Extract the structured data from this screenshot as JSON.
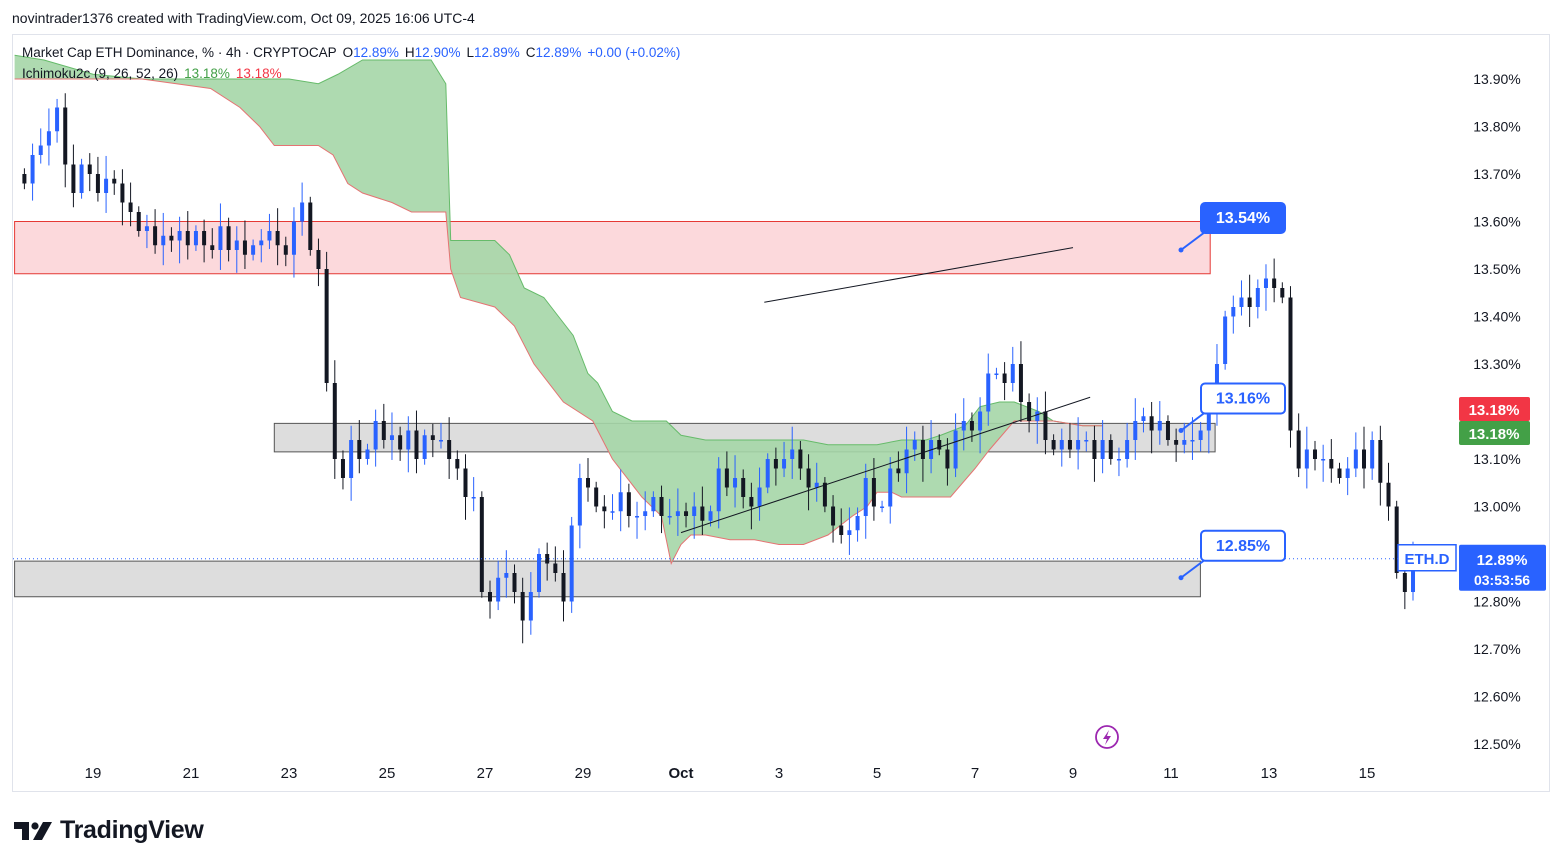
{
  "header": {
    "caption": "novintrader1376 created with TradingView.com, Oct 09, 2025 16:06 UTC-4"
  },
  "legend": {
    "symbol": "Market Cap ETH Dominance, % · 4h · CRYPTOCAP",
    "open_label": "O",
    "open": "12.89%",
    "high_label": "H",
    "high": "12.90%",
    "low_label": "L",
    "low": "12.89%",
    "close_label": "C",
    "close": "12.89%",
    "change": "+0.00 (+0.02%)",
    "indicator": "Ichimoku2c (9, 26, 52, 26)",
    "indicator_val1": "13.18%",
    "indicator_val2": "13.18%"
  },
  "footer": {
    "brand": "TradingView"
  },
  "colors": {
    "up": "#2962ff",
    "down": "#131722",
    "cloud_fill": "#a5d6a7",
    "cloud_edge": "#e57373",
    "resistance_zone": "#fcd9dc",
    "support_zone": "#d9d9d9",
    "accent": "#2962ff"
  },
  "chart_data": {
    "type": "candlestick",
    "title": "Market Cap ETH Dominance, % · 4h · CRYPTOCAP",
    "ylim": [
      12.46,
      13.98
    ],
    "yticks": [
      "13.90%",
      "13.80%",
      "13.70%",
      "13.60%",
      "13.50%",
      "13.40%",
      "13.30%",
      "13.10%",
      "13.00%",
      "12.80%",
      "12.70%",
      "12.60%",
      "12.50%"
    ],
    "ytick_values": [
      13.9,
      13.8,
      13.7,
      13.6,
      13.5,
      13.4,
      13.3,
      13.1,
      13.0,
      12.8,
      12.7,
      12.6,
      12.5
    ],
    "x_range_days": [
      17.4,
      16.3
    ],
    "xticks": [
      {
        "label": "19",
        "day": 19
      },
      {
        "label": "21",
        "day": 21
      },
      {
        "label": "23",
        "day": 23
      },
      {
        "label": "25",
        "day": 25
      },
      {
        "label": "27",
        "day": 27
      },
      {
        "label": "29",
        "day": 29
      },
      {
        "label": "Oct",
        "day": 31
      },
      {
        "label": "3",
        "day": 33
      },
      {
        "label": "5",
        "day": 35
      },
      {
        "label": "7",
        "day": 37
      },
      {
        "label": "9",
        "day": 39
      },
      {
        "label": "11",
        "day": 41
      },
      {
        "label": "13",
        "day": 43
      },
      {
        "label": "15",
        "day": 45
      }
    ],
    "candle_day_start": 17.6,
    "candle_step_days": 0.1667,
    "closes": [
      13.68,
      13.74,
      13.76,
      13.79,
      13.84,
      13.72,
      13.66,
      13.72,
      13.7,
      13.66,
      13.69,
      13.68,
      13.64,
      13.62,
      13.58,
      13.59,
      13.55,
      13.57,
      13.56,
      13.58,
      13.55,
      13.58,
      13.55,
      13.54,
      13.59,
      13.54,
      13.56,
      13.53,
      13.55,
      13.56,
      13.58,
      13.55,
      13.53,
      13.6,
      13.64,
      13.54,
      13.5,
      13.26,
      13.1,
      13.06,
      13.14,
      13.1,
      13.12,
      13.18,
      13.14,
      13.15,
      13.12,
      13.16,
      13.1,
      13.15,
      13.14,
      13.14,
      13.1,
      13.08,
      13.02,
      13.02,
      12.82,
      12.8,
      12.85,
      12.86,
      12.82,
      12.76,
      12.82,
      12.9,
      12.88,
      12.86,
      12.8,
      12.96,
      13.06,
      13.04,
      13.0,
      12.99,
      12.99,
      13.03,
      12.98,
      12.98,
      12.99,
      13.02,
      12.98,
      12.98,
      12.99,
      12.98,
      13.0,
      12.97,
      12.99,
      13.08,
      13.04,
      13.06,
      13.02,
      13.0,
      13.04,
      13.1,
      13.08,
      13.1,
      13.12,
      13.08,
      13.04,
      13.05,
      13.0,
      12.96,
      12.94,
      12.95,
      12.98,
      13.06,
      13.0,
      13.0,
      13.08,
      13.07,
      13.12,
      13.14,
      13.1,
      13.14,
      13.12,
      13.08,
      13.16,
      13.18,
      13.16,
      13.2,
      13.28,
      13.28,
      13.26,
      13.3,
      13.22,
      13.18,
      13.2,
      13.14,
      13.12,
      13.14,
      13.12,
      13.14,
      13.14,
      13.1,
      13.14,
      13.1,
      13.1,
      13.14,
      13.18,
      13.19,
      13.16,
      13.18,
      13.14,
      13.13,
      13.14,
      13.14,
      13.16,
      13.2,
      13.3,
      13.4,
      13.42,
      13.44,
      13.42,
      13.46,
      13.48,
      13.46,
      13.44,
      13.16,
      13.08,
      13.12,
      13.1,
      13.1,
      13.08,
      13.06,
      13.08,
      13.12,
      13.08,
      13.14,
      13.05,
      13.0,
      12.86,
      12.82,
      12.89
    ],
    "ichimoku_cloud_top": [
      [
        17.4,
        13.95
      ],
      [
        18.0,
        13.94
      ],
      [
        19.0,
        13.91
      ],
      [
        20.0,
        13.9
      ],
      [
        21.4,
        13.9
      ],
      [
        22.0,
        13.9
      ],
      [
        23.0,
        13.9
      ],
      [
        23.6,
        13.89
      ],
      [
        24.0,
        13.91
      ],
      [
        24.5,
        13.94
      ],
      [
        25.3,
        13.94
      ],
      [
        25.9,
        13.94
      ],
      [
        26.2,
        13.89
      ],
      [
        26.3,
        13.56
      ],
      [
        27.2,
        13.56
      ],
      [
        27.5,
        13.53
      ],
      [
        27.8,
        13.46
      ],
      [
        28.2,
        13.44
      ],
      [
        28.5,
        13.4
      ],
      [
        28.8,
        13.36
      ],
      [
        29.1,
        13.28
      ],
      [
        29.3,
        13.26
      ],
      [
        29.6,
        13.2
      ],
      [
        30.0,
        13.18
      ],
      [
        30.7,
        13.18
      ],
      [
        31.0,
        13.15
      ],
      [
        31.5,
        13.14
      ],
      [
        32.0,
        13.14
      ],
      [
        32.5,
        13.14
      ],
      [
        33.0,
        13.14
      ],
      [
        33.5,
        13.14
      ],
      [
        34.0,
        13.13
      ],
      [
        34.5,
        13.13
      ],
      [
        35.0,
        13.13
      ],
      [
        35.5,
        13.14
      ],
      [
        36.0,
        13.14
      ],
      [
        36.3,
        13.15
      ],
      [
        36.8,
        13.17
      ],
      [
        37.1,
        13.21
      ],
      [
        37.5,
        13.22
      ],
      [
        37.8,
        13.22
      ],
      [
        38.3,
        13.2
      ],
      [
        38.6,
        13.18
      ],
      [
        39.2,
        13.17
      ],
      [
        39.6,
        13.17
      ]
    ],
    "ichimoku_cloud_bottom": [
      [
        17.4,
        13.9
      ],
      [
        18.0,
        13.9
      ],
      [
        19.0,
        13.9
      ],
      [
        20.0,
        13.9
      ],
      [
        21.4,
        13.88
      ],
      [
        22.0,
        13.84
      ],
      [
        22.4,
        13.8
      ],
      [
        22.7,
        13.76
      ],
      [
        23.6,
        13.76
      ],
      [
        23.9,
        13.74
      ],
      [
        24.2,
        13.68
      ],
      [
        24.5,
        13.66
      ],
      [
        25.1,
        13.64
      ],
      [
        25.5,
        13.62
      ],
      [
        26.2,
        13.62
      ],
      [
        26.3,
        13.5
      ],
      [
        26.5,
        13.44
      ],
      [
        27.2,
        13.42
      ],
      [
        27.6,
        13.38
      ],
      [
        28.0,
        13.3
      ],
      [
        28.6,
        13.22
      ],
      [
        29.2,
        13.18
      ],
      [
        29.6,
        13.1
      ],
      [
        30.2,
        13.02
      ],
      [
        30.6,
        12.98
      ],
      [
        30.8,
        12.88
      ],
      [
        31.0,
        12.92
      ],
      [
        31.2,
        12.94
      ],
      [
        31.5,
        12.94
      ],
      [
        32.0,
        12.93
      ],
      [
        32.5,
        12.93
      ],
      [
        33.0,
        12.92
      ],
      [
        33.5,
        12.92
      ],
      [
        34.0,
        12.94
      ],
      [
        34.5,
        12.98
      ],
      [
        34.8,
        13.0
      ],
      [
        35.0,
        13.03
      ],
      [
        35.3,
        13.03
      ],
      [
        35.5,
        13.02
      ],
      [
        36.0,
        13.02
      ],
      [
        36.5,
        13.02
      ],
      [
        37.0,
        13.08
      ],
      [
        37.3,
        13.12
      ],
      [
        37.8,
        13.18
      ],
      [
        38.3,
        13.18
      ],
      [
        38.6,
        13.18
      ],
      [
        39.2,
        13.17
      ],
      [
        39.6,
        13.17
      ]
    ],
    "zones": [
      {
        "name": "resistance",
        "from_day": 17.4,
        "to_day": 41.8,
        "low": 13.49,
        "high": 13.6
      },
      {
        "name": "middle-support",
        "from_day": 22.7,
        "to_day": 41.9,
        "low": 13.115,
        "high": 13.175
      },
      {
        "name": "lower-support",
        "from_day": 17.4,
        "to_day": 41.6,
        "low": 12.81,
        "high": 12.885
      }
    ],
    "trendlines": [
      {
        "name": "upper-trendline",
        "from": [
          32.7,
          13.43
        ],
        "to": [
          39.0,
          13.545
        ]
      },
      {
        "name": "lower-trendline",
        "from": [
          31.0,
          12.945
        ],
        "to": [
          39.35,
          13.23
        ]
      }
    ],
    "callouts": [
      {
        "name": "callout-1354",
        "text": "13.54%",
        "price": 13.54,
        "filled": true
      },
      {
        "name": "callout-1316",
        "text": "13.16%",
        "price": 13.16,
        "filled": false
      },
      {
        "name": "callout-1285",
        "text": "12.85%",
        "price": 12.85,
        "filled": false
      }
    ],
    "price_tags": [
      {
        "name": "ichimoku-red-tag",
        "text": "13.18%",
        "color": "#f23645",
        "price": 13.18,
        "offset": -12
      },
      {
        "name": "ichimoku-green-tag",
        "text": "13.18%",
        "color": "#43a047",
        "price": 13.18,
        "offset": 12
      },
      {
        "name": "last-price-tag",
        "text": "12.89%",
        "countdown": "03:53:56",
        "color": "#2962ff",
        "price": 12.89
      }
    ],
    "symbol_tag": "ETH.D",
    "last_price": 12.89
  }
}
